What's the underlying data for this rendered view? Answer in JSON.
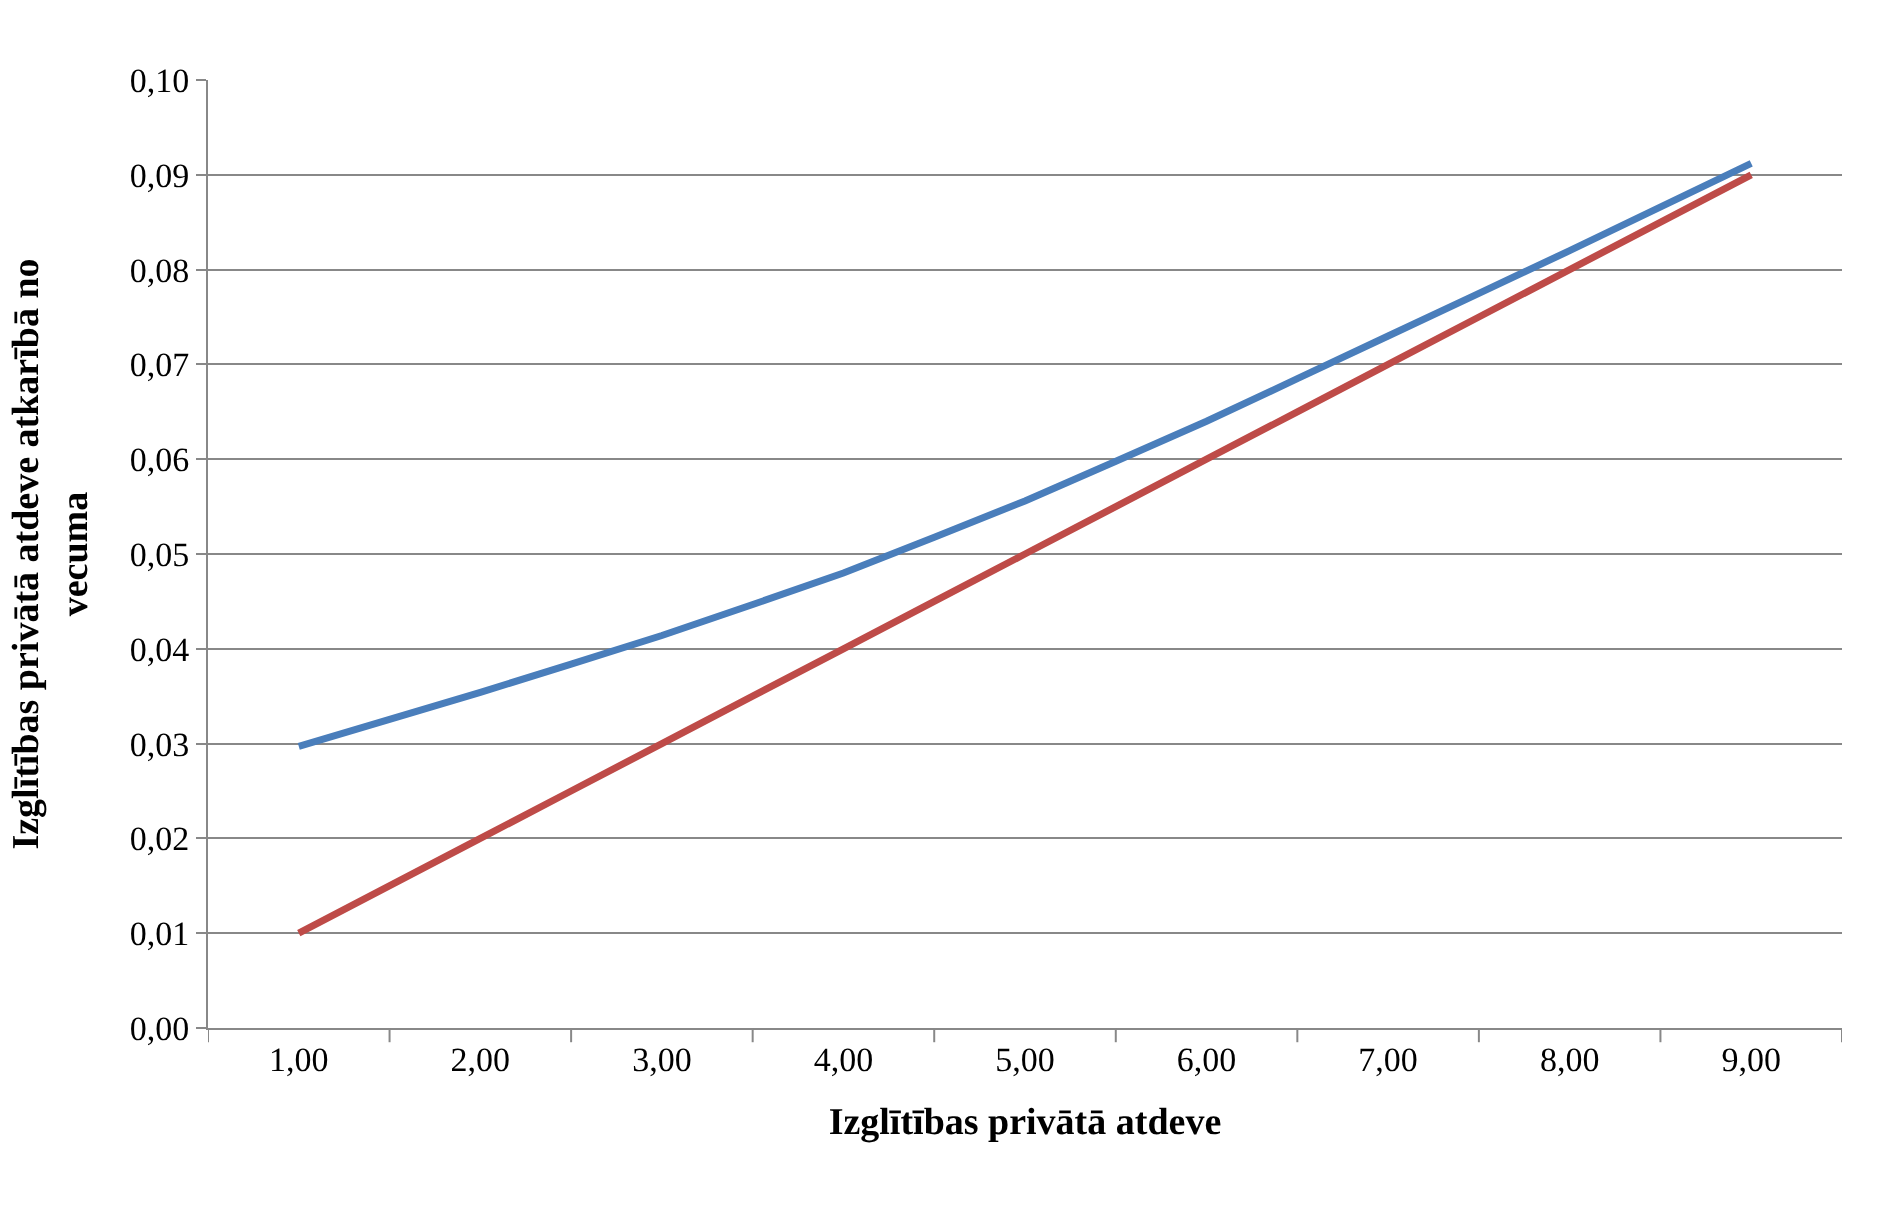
{
  "chart_data": {
    "type": "line",
    "xlabel": "Izglītības privātā atdeve",
    "ylabel": "Izglītības privātā atdeve atkarībā no vecuma",
    "categories": [
      "1,00",
      "2,00",
      "3,00",
      "4,00",
      "5,00",
      "6,00",
      "7,00",
      "8,00",
      "9,00"
    ],
    "series": [
      {
        "color": "#4a7ebb",
        "values": [
          0.0297,
          0.0354,
          0.0414,
          0.048,
          0.0556,
          0.064,
          0.073,
          0.082,
          0.0912
        ]
      },
      {
        "color": "#be4b48",
        "values": [
          0.01,
          0.02,
          0.03,
          0.04,
          0.05,
          0.06,
          0.07,
          0.08,
          0.09
        ]
      }
    ],
    "ylim": [
      0,
      0.1
    ],
    "yticks": [
      {
        "value": 0,
        "label": "0,00"
      },
      {
        "value": 0.01,
        "label": "0,01"
      },
      {
        "value": 0.02,
        "label": "0,02"
      },
      {
        "value": 0.03,
        "label": "0,03"
      },
      {
        "value": 0.04,
        "label": "0,04"
      },
      {
        "value": 0.05,
        "label": "0,05"
      },
      {
        "value": 0.06,
        "label": "0,06"
      },
      {
        "value": 0.07,
        "label": "0,07"
      },
      {
        "value": 0.08,
        "label": "0,08"
      },
      {
        "value": 0.09,
        "label": "0,09"
      },
      {
        "value": 0.1,
        "label": "0,10"
      }
    ],
    "grid": "y",
    "marker": "none",
    "line_style": "solid"
  }
}
